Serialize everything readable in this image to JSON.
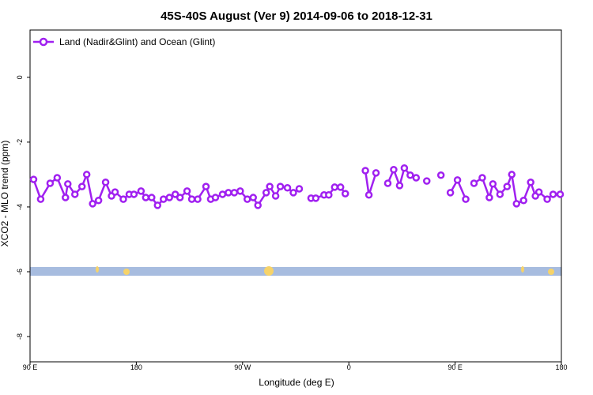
{
  "chart_data": {
    "type": "line",
    "title": "45S-40S August (Ver 9)   2014-09-06 to 2018-12-31",
    "x_label": "Longitude (deg E)",
    "y_label": "XCO2 - MLO trend (ppm)",
    "legend_position": "upper left",
    "xlim": [
      90,
      540
    ],
    "ylim": [
      -8.78,
      1.46
    ],
    "xticks": [
      {
        "value": 90,
        "label": "90 E"
      },
      {
        "value": 180,
        "label": "180"
      },
      {
        "value": 270,
        "label": "90 W"
      },
      {
        "value": 360,
        "label": "0"
      },
      {
        "value": 450,
        "label": "90 E"
      },
      {
        "value": 540,
        "label": "180"
      }
    ],
    "yticks": [
      0,
      -2,
      -4,
      -6,
      -8
    ],
    "grid": false,
    "x": [
      93,
      99,
      107,
      113,
      120,
      122,
      128,
      134,
      138,
      143,
      148,
      154,
      159,
      162,
      169,
      174,
      178,
      184,
      188,
      193,
      198,
      203,
      208,
      213,
      217,
      223,
      227,
      232,
      239,
      243,
      247,
      253,
      258,
      263,
      268,
      274,
      279,
      283,
      290,
      293,
      298,
      302,
      308,
      313,
      318,
      323,
      328,
      332,
      339,
      343,
      348,
      353,
      357,
      365,
      374,
      377,
      383,
      387,
      393,
      398,
      403,
      407,
      412,
      417,
      422,
      426,
      432,
      438,
      442,
      446,
      452,
      459,
      462,
      466,
      473,
      479,
      482,
      488,
      494,
      498,
      502,
      508,
      514,
      518,
      521,
      528,
      533,
      539
    ],
    "series": [
      {
        "name": "Land (Nadir&Glint) and Ocean (Glint)",
        "color": "#a020f0",
        "values": [
          -3.15,
          -3.76,
          -3.27,
          -3.1,
          -3.71,
          -3.29,
          -3.61,
          -3.37,
          -3.0,
          -3.9,
          -3.8,
          -3.24,
          -3.66,
          -3.54,
          -3.76,
          -3.61,
          -3.61,
          -3.51,
          -3.71,
          -3.71,
          -3.95,
          -3.76,
          -3.71,
          -3.61,
          -3.71,
          -3.51,
          -3.76,
          -3.76,
          -3.37,
          -3.76,
          -3.71,
          -3.61,
          -3.56,
          -3.56,
          -3.51,
          -3.76,
          -3.71,
          -3.95,
          -3.56,
          -3.37,
          -3.66,
          -3.37,
          -3.41,
          -3.56,
          -3.44,
          null,
          -3.73,
          -3.73,
          -3.63,
          -3.63,
          -3.39,
          -3.39,
          -3.59,
          null,
          -2.88,
          -3.63,
          -2.95,
          null,
          -3.27,
          -2.85,
          -3.34,
          -2.8,
          -3.02,
          -3.1,
          null,
          -3.2,
          null,
          -3.02,
          null,
          -3.56,
          -3.17,
          -3.76,
          null,
          -3.27,
          -3.1,
          -3.71,
          -3.29,
          -3.61,
          -3.37,
          -3.0,
          -3.9,
          -3.8,
          -3.24,
          -3.66,
          -3.54,
          -3.76,
          -3.61,
          -3.61
        ]
      }
    ]
  }
}
